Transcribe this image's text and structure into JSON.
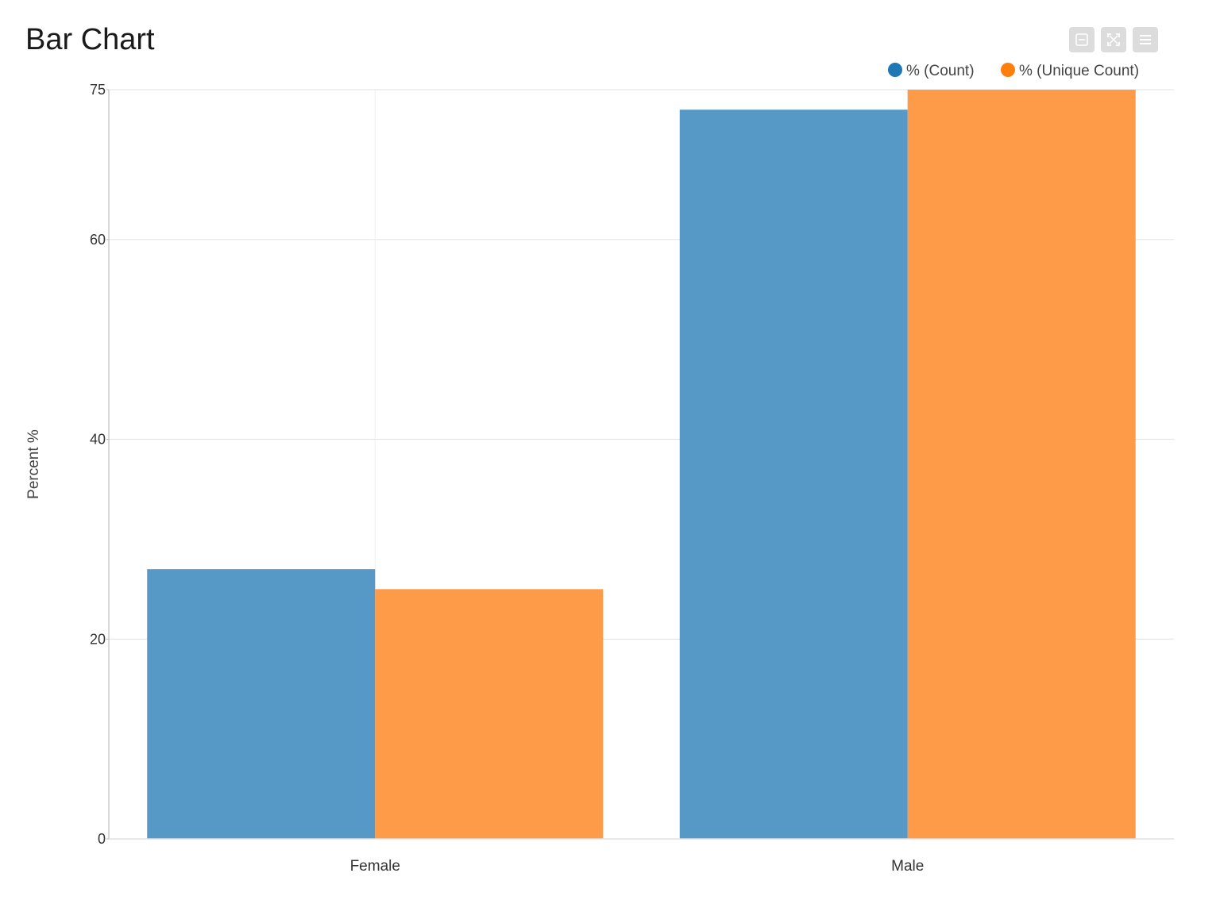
{
  "page": {
    "title": "Bar Chart"
  },
  "toolbar": {
    "buttons": [
      {
        "name": "minimize-icon"
      },
      {
        "name": "expand-icon"
      },
      {
        "name": "menu-icon"
      }
    ]
  },
  "colors": {
    "count": "#5799c6",
    "unique_count": "#fd9b48",
    "legend_count": "#1f77b4",
    "legend_unique_count": "#ff7f0e"
  },
  "chart_data": {
    "type": "bar",
    "title": "Bar Chart",
    "categories": [
      "Female",
      "Male"
    ],
    "series": [
      {
        "name": "% (Count)",
        "values": [
          27,
          73
        ]
      },
      {
        "name": "% (Unique Count)",
        "values": [
          25,
          75
        ]
      }
    ],
    "xlabel": "",
    "ylabel": "Percent %",
    "ylim": [
      0,
      75
    ],
    "yticks": [
      0,
      20,
      40,
      60,
      75
    ],
    "grid": true,
    "legend_position": "top-right"
  }
}
